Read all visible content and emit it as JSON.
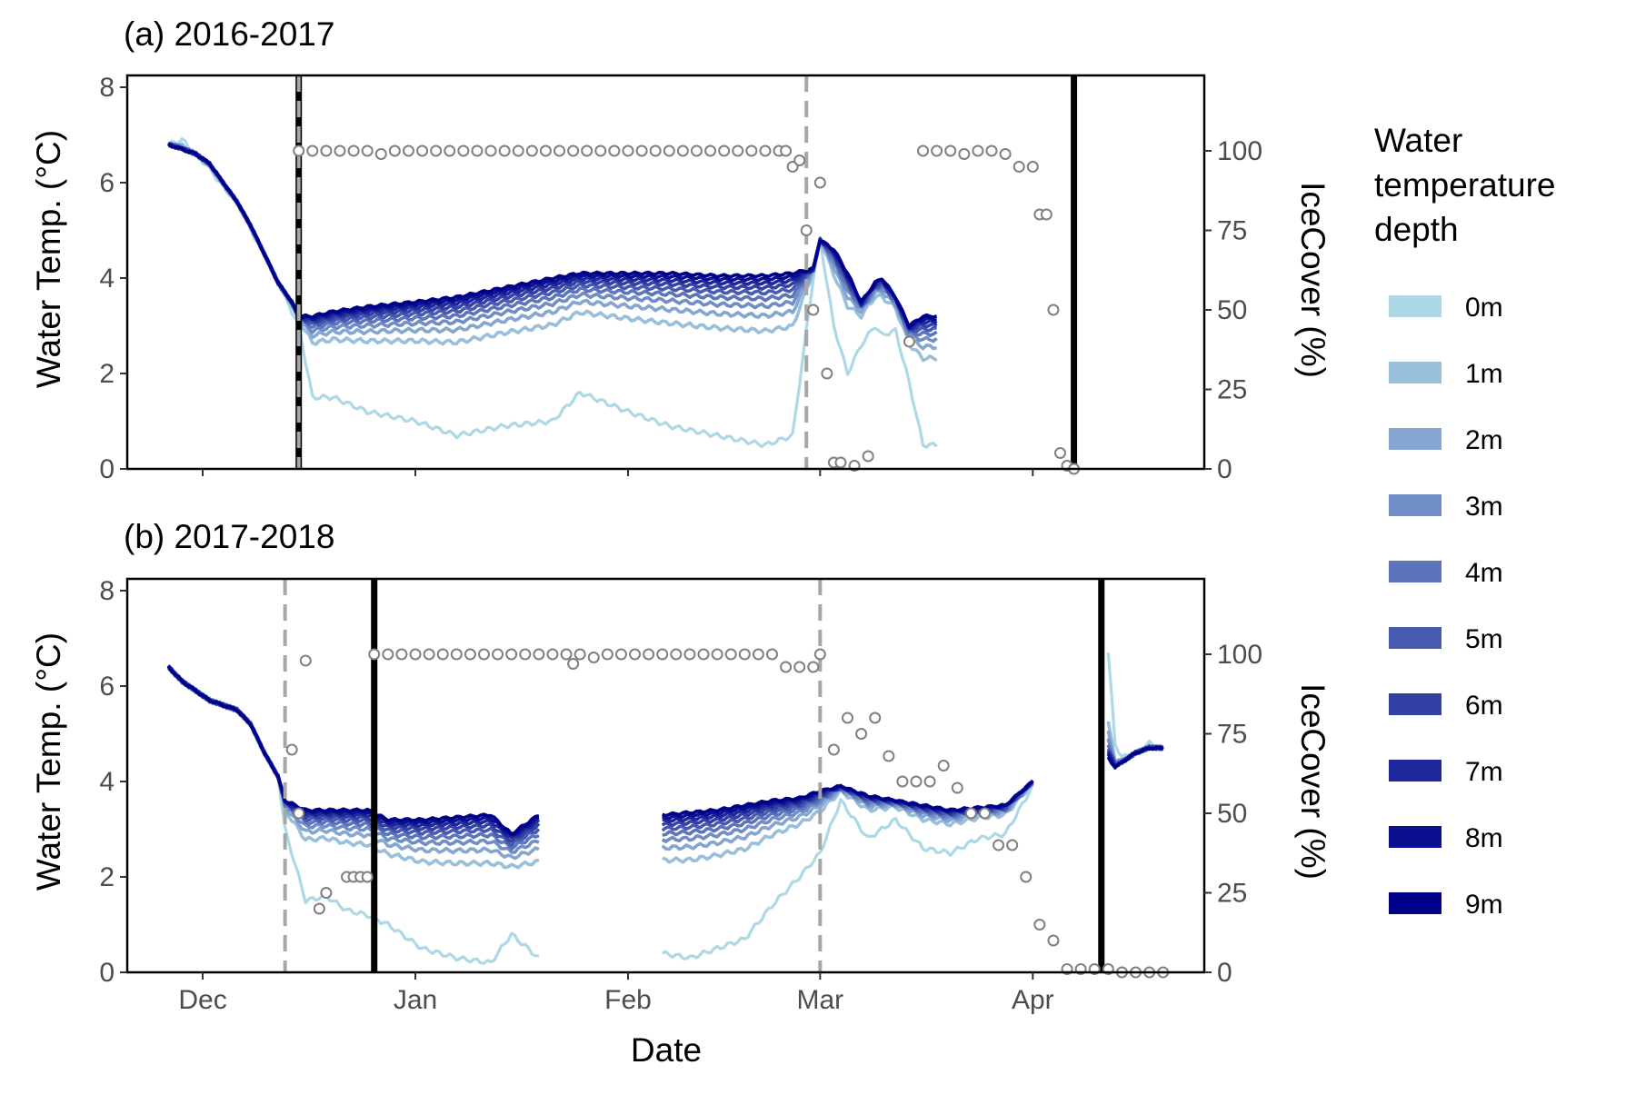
{
  "figure": {
    "xlabel": "Date",
    "x_ticks": [
      {
        "label": "Dec",
        "date": "2000-12-01"
      },
      {
        "label": "Jan",
        "date": "2001-01-01"
      },
      {
        "label": "Feb",
        "date": "2001-02-01"
      },
      {
        "label": "Mar",
        "date": "2001-03-01"
      },
      {
        "label": "Apr",
        "date": "2001-04-01"
      }
    ],
    "xlim": [
      "2000-11-20",
      "2001-04-26"
    ],
    "legend": {
      "title_lines": [
        "Water",
        "temperature",
        "depth"
      ],
      "entries": [
        {
          "label": "0m",
          "color": "#add8e6"
        },
        {
          "label": "1m",
          "color": "#98bfdc"
        },
        {
          "label": "2m",
          "color": "#84a6d1"
        },
        {
          "label": "3m",
          "color": "#708dc6"
        },
        {
          "label": "4m",
          "color": "#5c74bb"
        },
        {
          "label": "5m",
          "color": "#475ab1"
        },
        {
          "label": "6m",
          "color": "#3341a6"
        },
        {
          "label": "7m",
          "color": "#1f289b"
        },
        {
          "label": "8m",
          "color": "#0b0f91"
        },
        {
          "label": "9m",
          "color": "#00008b"
        }
      ],
      "placement": "right"
    }
  },
  "chart_data": [
    {
      "type": "line",
      "title": "(a) 2016-2017",
      "ylabel": "Water Temp. (°C)",
      "y2label": "IceCover (%)",
      "ylim": [
        0,
        8
      ],
      "y_ticks": [
        0,
        2,
        4,
        6,
        8
      ],
      "y2lim": [
        0,
        120
      ],
      "y2_ticks": [
        0,
        25,
        50,
        75,
        100
      ],
      "grid": false,
      "vlines": [
        {
          "date": "2000-12-15",
          "style": "solid",
          "color": "#000000"
        },
        {
          "date": "2000-12-15",
          "style": "dashed",
          "color": "#a6a6a6"
        },
        {
          "date": "2001-02-27",
          "style": "dashed",
          "color": "#a6a6a6"
        },
        {
          "date": "2001-04-07",
          "style": "solid",
          "color": "#000000"
        }
      ],
      "temperature": {
        "dates": [
          "2000-11-26",
          "2000-11-28",
          "2000-11-30",
          "2000-12-02",
          "2000-12-04",
          "2000-12-06",
          "2000-12-08",
          "2000-12-10",
          "2000-12-12",
          "2000-12-14",
          "2000-12-15",
          "2000-12-17",
          "2000-12-20",
          "2000-12-25",
          "2001-01-01",
          "2001-01-07",
          "2001-01-14",
          "2001-01-21",
          "2001-01-25",
          "2001-02-01",
          "2001-02-07",
          "2001-02-14",
          "2001-02-21",
          "2001-02-25",
          "2001-02-28",
          "2001-03-01",
          "2001-03-03",
          "2001-03-05",
          "2001-03-07",
          "2001-03-09",
          "2001-03-10",
          "2001-03-12",
          "2001-03-14",
          "2001-03-16",
          "2001-03-18"
        ],
        "deep": [
          6.8,
          6.7,
          6.6,
          6.4,
          6.0,
          5.6,
          5.1,
          4.5,
          3.9,
          3.5,
          3.2,
          3.2,
          3.3,
          3.4,
          3.5,
          3.6,
          3.8,
          4.0,
          4.1,
          4.1,
          4.1,
          4.05,
          4.05,
          4.1,
          4.2,
          4.8,
          4.6,
          4.1,
          3.5,
          3.9,
          4.0,
          3.6,
          3.0,
          3.2,
          3.2
        ],
        "surface": [
          6.8,
          6.9,
          6.6,
          6.3,
          5.9,
          5.6,
          5.0,
          4.5,
          3.9,
          3.3,
          3.0,
          1.5,
          1.5,
          1.2,
          1.0,
          0.7,
          0.9,
          1.0,
          1.6,
          1.2,
          0.9,
          0.7,
          0.5,
          0.7,
          4.0,
          4.8,
          3.0,
          2.0,
          2.6,
          3.0,
          2.8,
          2.9,
          1.8,
          0.5,
          0.5
        ]
      },
      "ice_cover": {
        "dates": [
          "2000-12-15",
          "2000-12-17",
          "2000-12-19",
          "2000-12-21",
          "2000-12-23",
          "2000-12-25",
          "2000-12-27",
          "2000-12-29",
          "2000-12-31",
          "2001-01-02",
          "2001-01-04",
          "2001-01-06",
          "2001-01-08",
          "2001-01-10",
          "2001-01-12",
          "2001-01-14",
          "2001-01-16",
          "2001-01-18",
          "2001-01-20",
          "2001-01-22",
          "2001-01-24",
          "2001-01-26",
          "2001-01-28",
          "2001-01-30",
          "2001-02-01",
          "2001-02-03",
          "2001-02-05",
          "2001-02-07",
          "2001-02-09",
          "2001-02-11",
          "2001-02-13",
          "2001-02-15",
          "2001-02-17",
          "2001-02-19",
          "2001-02-21",
          "2001-02-23",
          "2001-02-24",
          "2001-02-25",
          "2001-02-26",
          "2001-02-27",
          "2001-02-28",
          "2001-03-01",
          "2001-03-02",
          "2001-03-03",
          "2001-03-04",
          "2001-03-06",
          "2001-03-08",
          "2001-03-14",
          "2001-03-16",
          "2001-03-18",
          "2001-03-20",
          "2001-03-22",
          "2001-03-24",
          "2001-03-26",
          "2001-03-28",
          "2001-03-30",
          "2001-04-01",
          "2001-04-02",
          "2001-04-03",
          "2001-04-04",
          "2001-04-05",
          "2001-04-06",
          "2001-04-07"
        ],
        "values": [
          100,
          100,
          100,
          100,
          100,
          100,
          99,
          100,
          100,
          100,
          100,
          100,
          100,
          100,
          100,
          100,
          100,
          100,
          100,
          100,
          100,
          100,
          100,
          100,
          100,
          100,
          100,
          100,
          100,
          100,
          100,
          100,
          100,
          100,
          100,
          100,
          100,
          95,
          97,
          75,
          50,
          90,
          30,
          2,
          2,
          1,
          4,
          40,
          100,
          100,
          100,
          99,
          100,
          100,
          99,
          95,
          95,
          80,
          80,
          50,
          5,
          1,
          0
        ]
      }
    },
    {
      "type": "line",
      "title": "(b) 2017-2018",
      "ylabel": "Water Temp. (°C)",
      "y2label": "IceCover (%)",
      "ylim": [
        0,
        8
      ],
      "y_ticks": [
        0,
        2,
        4,
        6,
        8
      ],
      "y2lim": [
        0,
        120
      ],
      "y2_ticks": [
        0,
        25,
        50,
        75,
        100
      ],
      "grid": false,
      "vlines": [
        {
          "date": "2000-12-13",
          "style": "dashed",
          "color": "#a6a6a6"
        },
        {
          "date": "2000-12-26",
          "style": "solid",
          "color": "#000000"
        },
        {
          "date": "2001-03-01",
          "style": "dashed",
          "color": "#a6a6a6"
        },
        {
          "date": "2001-04-11",
          "style": "solid",
          "color": "#000000"
        }
      ],
      "temperature": {
        "segments": [
          {
            "dates": [
              "2000-11-26",
              "2000-11-28",
              "2000-11-30",
              "2000-12-02",
              "2000-12-04",
              "2000-12-06",
              "2000-12-08",
              "2000-12-10",
              "2000-12-12",
              "2000-12-13",
              "2000-12-16",
              "2000-12-19",
              "2000-12-22",
              "2000-12-25",
              "2000-12-28",
              "2001-01-02",
              "2001-01-07",
              "2001-01-12",
              "2001-01-15",
              "2001-01-19"
            ],
            "deep": [
              6.4,
              6.1,
              5.9,
              5.7,
              5.6,
              5.5,
              5.2,
              4.6,
              4.1,
              3.6,
              3.4,
              3.4,
              3.4,
              3.4,
              3.2,
              3.2,
              3.25,
              3.3,
              2.9,
              3.3
            ],
            "surface": [
              6.4,
              6.1,
              5.9,
              5.7,
              5.6,
              5.5,
              5.2,
              4.6,
              4.1,
              3.0,
              1.5,
              1.6,
              1.3,
              1.2,
              1.0,
              0.5,
              0.3,
              0.2,
              0.8,
              0.3
            ]
          },
          {
            "dates": [
              "2001-02-06",
              "2001-02-10",
              "2001-02-14",
              "2001-02-18",
              "2001-02-22",
              "2001-02-26",
              "2001-03-01",
              "2001-03-04",
              "2001-03-08",
              "2001-03-12",
              "2001-03-16",
              "2001-03-20",
              "2001-03-24",
              "2001-03-28",
              "2001-04-01"
            ],
            "deep": [
              3.3,
              3.35,
              3.4,
              3.5,
              3.6,
              3.65,
              3.8,
              3.9,
              3.7,
              3.6,
              3.5,
              3.4,
              3.45,
              3.5,
              4.0
            ],
            "surface": [
              0.4,
              0.3,
              0.5,
              0.7,
              1.4,
              2.0,
              2.5,
              3.6,
              2.8,
              3.2,
              2.6,
              2.5,
              2.8,
              2.9,
              3.9
            ]
          },
          {
            "dates": [
              "2001-04-12",
              "2001-04-13",
              "2001-04-14",
              "2001-04-16",
              "2001-04-18",
              "2001-04-20"
            ],
            "deep": [
              4.5,
              4.3,
              4.4,
              4.6,
              4.7,
              4.7
            ],
            "surface": [
              6.7,
              4.8,
              4.5,
              4.6,
              4.8,
              4.7
            ]
          }
        ]
      },
      "ice_cover": {
        "dates": [
          "2000-12-14",
          "2000-12-15",
          "2000-12-16",
          "2000-12-18",
          "2000-12-19",
          "2000-12-22",
          "2000-12-23",
          "2000-12-24",
          "2000-12-25",
          "2000-12-26",
          "2000-12-28",
          "2000-12-30",
          "2001-01-01",
          "2001-01-03",
          "2001-01-05",
          "2001-01-07",
          "2001-01-09",
          "2001-01-11",
          "2001-01-13",
          "2001-01-15",
          "2001-01-17",
          "2001-01-19",
          "2001-01-21",
          "2001-01-23",
          "2001-01-24",
          "2001-01-25",
          "2001-01-27",
          "2001-01-29",
          "2001-01-31",
          "2001-02-02",
          "2001-02-04",
          "2001-02-06",
          "2001-02-08",
          "2001-02-10",
          "2001-02-12",
          "2001-02-14",
          "2001-02-16",
          "2001-02-18",
          "2001-02-20",
          "2001-02-22",
          "2001-02-24",
          "2001-02-26",
          "2001-02-28",
          "2001-03-01",
          "2001-03-03",
          "2001-03-05",
          "2001-03-07",
          "2001-03-09",
          "2001-03-11",
          "2001-03-13",
          "2001-03-15",
          "2001-03-17",
          "2001-03-19",
          "2001-03-21",
          "2001-03-23",
          "2001-03-25",
          "2001-03-27",
          "2001-03-29",
          "2001-03-31",
          "2001-04-02",
          "2001-04-04",
          "2001-04-06",
          "2001-04-08",
          "2001-04-10",
          "2001-04-12",
          "2001-04-14",
          "2001-04-16",
          "2001-04-18",
          "2001-04-20"
        ],
        "values": [
          70,
          50,
          98,
          20,
          25,
          30,
          30,
          30,
          30,
          100,
          100,
          100,
          100,
          100,
          100,
          100,
          100,
          100,
          100,
          100,
          100,
          100,
          100,
          100,
          97,
          100,
          99,
          100,
          100,
          100,
          100,
          100,
          100,
          100,
          100,
          100,
          100,
          100,
          100,
          100,
          96,
          96,
          96,
          100,
          70,
          80,
          75,
          80,
          68,
          60,
          60,
          60,
          65,
          58,
          50,
          50,
          40,
          40,
          30,
          15,
          10,
          1,
          1,
          1,
          1,
          0,
          0,
          0,
          0
        ]
      }
    }
  ]
}
